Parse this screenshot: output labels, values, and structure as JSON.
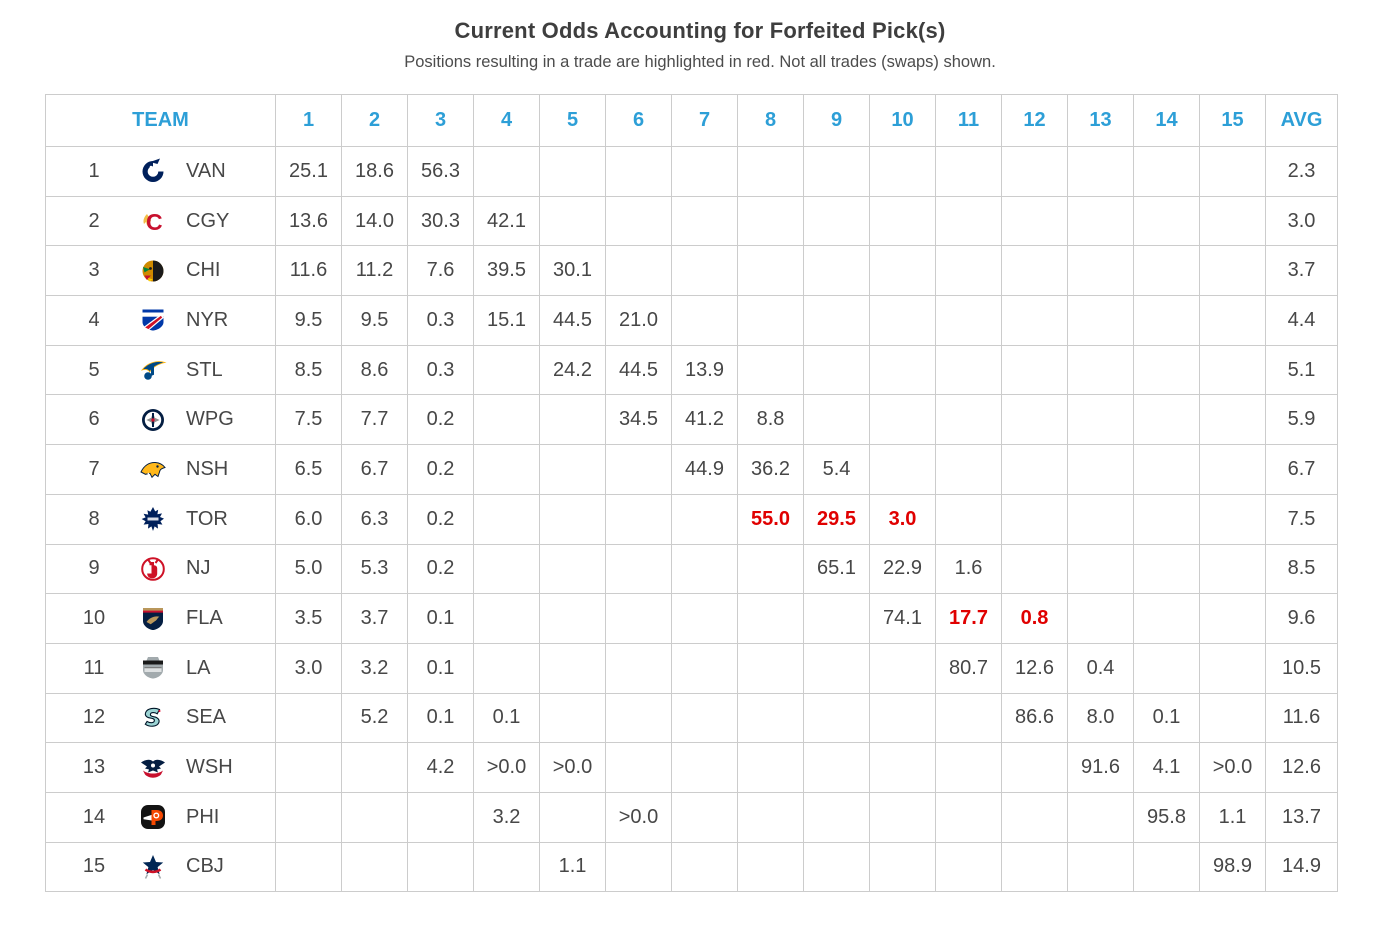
{
  "title": "Current Odds Accounting for Forfeited Pick(s)",
  "subtitle": "Positions resulting in a trade are highlighted in red. Not all trades (swaps) shown.",
  "colors": {
    "header_accent_blue": "#2d9fd7",
    "trade_highlight_red": "#e00000",
    "avg_column_bg": "#ececec",
    "grid_border": "#cccccc",
    "body_text": "#474747"
  },
  "table": {
    "team_header": "TEAM",
    "position_headers": [
      "1",
      "2",
      "3",
      "4",
      "5",
      "6",
      "7",
      "8",
      "9",
      "10",
      "11",
      "12",
      "13",
      "14",
      "15"
    ],
    "avg_header": "AVG",
    "rows": [
      {
        "rank": "1",
        "team": "VAN",
        "logo": "canucks-logo",
        "cells": [
          "25.1",
          "18.6",
          "56.3",
          "",
          "",
          "",
          "",
          "",
          "",
          "",
          "",
          "",
          "",
          "",
          ""
        ],
        "red_cells": [],
        "avg": "2.3"
      },
      {
        "rank": "2",
        "team": "CGY",
        "logo": "flames-logo",
        "cells": [
          "13.6",
          "14.0",
          "30.3",
          "42.1",
          "",
          "",
          "",
          "",
          "",
          "",
          "",
          "",
          "",
          "",
          ""
        ],
        "red_cells": [],
        "avg": "3.0"
      },
      {
        "rank": "3",
        "team": "CHI",
        "logo": "blackhawks-logo",
        "cells": [
          "11.6",
          "11.2",
          "7.6",
          "39.5",
          "30.1",
          "",
          "",
          "",
          "",
          "",
          "",
          "",
          "",
          "",
          ""
        ],
        "red_cells": [],
        "avg": "3.7"
      },
      {
        "rank": "4",
        "team": "NYR",
        "logo": "rangers-logo",
        "cells": [
          "9.5",
          "9.5",
          "0.3",
          "15.1",
          "44.5",
          "21.0",
          "",
          "",
          "",
          "",
          "",
          "",
          "",
          "",
          ""
        ],
        "red_cells": [],
        "avg": "4.4"
      },
      {
        "rank": "5",
        "team": "STL",
        "logo": "blues-logo",
        "cells": [
          "8.5",
          "8.6",
          "0.3",
          "",
          "24.2",
          "44.5",
          "13.9",
          "",
          "",
          "",
          "",
          "",
          "",
          "",
          ""
        ],
        "red_cells": [],
        "avg": "5.1"
      },
      {
        "rank": "6",
        "team": "WPG",
        "logo": "jets-logo",
        "cells": [
          "7.5",
          "7.7",
          "0.2",
          "",
          "",
          "34.5",
          "41.2",
          "8.8",
          "",
          "",
          "",
          "",
          "",
          "",
          ""
        ],
        "red_cells": [],
        "avg": "5.9"
      },
      {
        "rank": "7",
        "team": "NSH",
        "logo": "predators-logo",
        "cells": [
          "6.5",
          "6.7",
          "0.2",
          "",
          "",
          "",
          "44.9",
          "36.2",
          "5.4",
          "",
          "",
          "",
          "",
          "",
          ""
        ],
        "red_cells": [],
        "avg": "6.7"
      },
      {
        "rank": "8",
        "team": "TOR",
        "logo": "mapleleafs-logo",
        "cells": [
          "6.0",
          "6.3",
          "0.2",
          "",
          "",
          "",
          "",
          "55.0",
          "29.5",
          "3.0",
          "",
          "",
          "",
          "",
          ""
        ],
        "red_cells": [
          7,
          8,
          9
        ],
        "avg": "7.5"
      },
      {
        "rank": "9",
        "team": "NJ",
        "logo": "devils-logo",
        "cells": [
          "5.0",
          "5.3",
          "0.2",
          "",
          "",
          "",
          "",
          "",
          "65.1",
          "22.9",
          "1.6",
          "",
          "",
          "",
          ""
        ],
        "red_cells": [],
        "avg": "8.5"
      },
      {
        "rank": "10",
        "team": "FLA",
        "logo": "panthers-logo",
        "cells": [
          "3.5",
          "3.7",
          "0.1",
          "",
          "",
          "",
          "",
          "",
          "",
          "74.1",
          "17.7",
          "0.8",
          "",
          "",
          ""
        ],
        "red_cells": [
          10,
          11
        ],
        "avg": "9.6"
      },
      {
        "rank": "11",
        "team": "LA",
        "logo": "kings-logo",
        "cells": [
          "3.0",
          "3.2",
          "0.1",
          "",
          "",
          "",
          "",
          "",
          "",
          "",
          "80.7",
          "12.6",
          "0.4",
          "",
          ""
        ],
        "red_cells": [],
        "avg": "10.5"
      },
      {
        "rank": "12",
        "team": "SEA",
        "logo": "kraken-logo",
        "cells": [
          "",
          "5.2",
          "0.1",
          "0.1",
          "",
          "",
          "",
          "",
          "",
          "",
          "",
          "86.6",
          "8.0",
          "0.1",
          ""
        ],
        "red_cells": [],
        "avg": "11.6"
      },
      {
        "rank": "13",
        "team": "WSH",
        "logo": "capitals-logo",
        "cells": [
          "",
          "",
          "4.2",
          ">0.0",
          ">0.0",
          "",
          "",
          "",
          "",
          "",
          "",
          "",
          "91.6",
          "4.1",
          ">0.0"
        ],
        "red_cells": [],
        "avg": "12.6"
      },
      {
        "rank": "14",
        "team": "PHI",
        "logo": "flyers-logo",
        "cells": [
          "",
          "",
          "",
          "3.2",
          "",
          ">0.0",
          "",
          "",
          "",
          "",
          "",
          "",
          "",
          "95.8",
          "1.1"
        ],
        "red_cells": [],
        "avg": "13.7"
      },
      {
        "rank": "15",
        "team": "CBJ",
        "logo": "bluejackets-logo",
        "cells": [
          "",
          "",
          "",
          "",
          "1.1",
          "",
          "",
          "",
          "",
          "",
          "",
          "",
          "",
          "",
          "98.9"
        ],
        "red_cells": [],
        "avg": "14.9"
      }
    ]
  }
}
